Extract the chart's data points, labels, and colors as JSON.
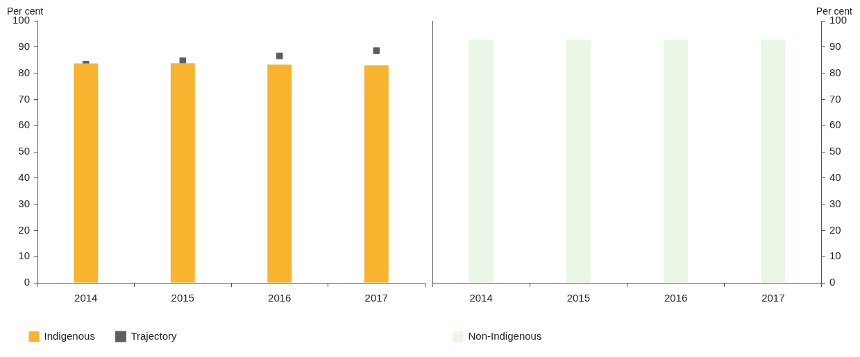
{
  "chart_data": [
    {
      "type": "bar",
      "ylabel": "Per cent",
      "categories": [
        "2014",
        "2015",
        "2016",
        "2017"
      ],
      "series": [
        {
          "name": "Indigenous",
          "color": "#f8b42e",
          "values": [
            83.7,
            83.8,
            83.3,
            83.0
          ]
        },
        {
          "name": "Trajectory",
          "type": "scatter",
          "color": "#5e5e5e",
          "values": [
            83.4,
            84.8,
            86.6,
            88.6
          ]
        }
      ],
      "ylim": [
        0,
        100
      ],
      "yticks": [
        0,
        10,
        20,
        30,
        40,
        50,
        60,
        70,
        80,
        90,
        100
      ],
      "legend": "bottom",
      "marker": "square"
    },
    {
      "type": "bar",
      "y2label": "Per cent",
      "categories": [
        "2014",
        "2015",
        "2016",
        "2017"
      ],
      "series": [
        {
          "name": "Non-Indigenous",
          "color": "#eaf6e6",
          "values": [
            92.8,
            92.8,
            92.8,
            92.8
          ],
          "axis": "y2"
        }
      ],
      "y2lim": [
        0,
        100
      ],
      "y2ticks": [
        0,
        10,
        20,
        30,
        40,
        50,
        60,
        70,
        80,
        90,
        100
      ],
      "legend": "bottom"
    }
  ]
}
